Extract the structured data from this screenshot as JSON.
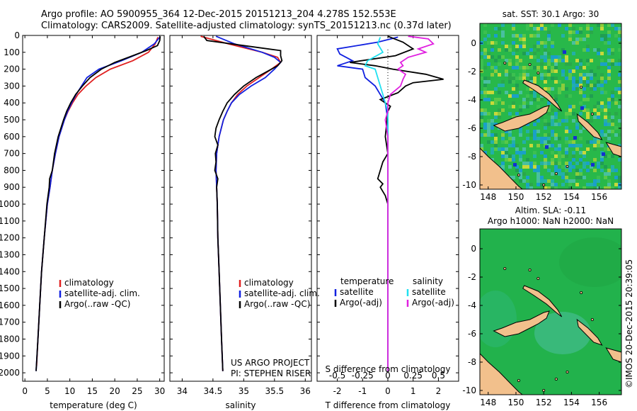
{
  "header": {
    "line1": "Argo profile: AO 5900955_364 12-Dec-2015 20151213_204 4.278S 152.553E",
    "line2": "Climatology: CARS2009. Satellite-adjusted climatology: synTS_20151213.nc (0.37d later)"
  },
  "colors": {
    "climatology": "#e02020",
    "satellite": "#1020e0",
    "argo": "#000000",
    "sal_satellite": "#20e0f0",
    "sal_argo": "#e020e0",
    "ocean": "#2ab34a",
    "land": "#f2c08c"
  },
  "chart_data": [
    {
      "id": "temperature",
      "type": "line",
      "xlabel": "temperature (deg C)",
      "ylabel": "",
      "xlim": [
        -0.5,
        31
      ],
      "ylim": [
        2050,
        0
      ],
      "xticks": [
        0,
        5,
        10,
        15,
        20,
        25,
        30
      ],
      "yticks": [
        0,
        100,
        200,
        300,
        400,
        500,
        600,
        700,
        800,
        900,
        1000,
        1100,
        1200,
        1300,
        1400,
        1500,
        1600,
        1700,
        1800,
        1900,
        2000
      ],
      "legend": [
        "climatology",
        "satellite-adj. clim.",
        "Argo(..raw -QC)"
      ],
      "series": [
        {
          "name": "climatology",
          "color": "#e02020",
          "depth": [
            10,
            50,
            100,
            150,
            200,
            250,
            300,
            350,
            400,
            450,
            500,
            600,
            700,
            800,
            900,
            1000,
            1200,
            1400,
            1600,
            1800,
            1960
          ],
          "values": [
            29.6,
            29.0,
            27.5,
            24.0,
            19.0,
            15.8,
            13.6,
            11.8,
            10.6,
            9.6,
            8.8,
            7.6,
            6.8,
            6.1,
            5.6,
            5.0,
            4.3,
            3.7,
            3.3,
            2.9,
            2.6
          ]
        },
        {
          "name": "satellite",
          "color": "#1020e0",
          "depth": [
            10,
            50,
            100,
            150,
            200,
            250,
            300,
            350,
            400,
            450,
            500,
            600,
            700,
            800,
            900,
            1000,
            1200,
            1400,
            1600,
            1800,
            1990
          ],
          "values": [
            30.0,
            28.8,
            26.0,
            21.5,
            16.5,
            13.8,
            12.6,
            11.4,
            10.4,
            9.5,
            8.8,
            7.6,
            6.8,
            6.1,
            5.6,
            5.0,
            4.3,
            3.7,
            3.3,
            2.9,
            2.5
          ]
        },
        {
          "name": "argo",
          "color": "#000000",
          "depth": [
            5,
            30,
            60,
            90,
            120,
            160,
            200,
            250,
            300,
            350,
            400,
            450,
            500,
            600,
            700,
            800,
            850,
            900,
            1000,
            1200,
            1400,
            1600,
            1800,
            1990
          ],
          "values": [
            30.1,
            30.0,
            29.5,
            27.0,
            24.0,
            20.0,
            17.0,
            14.5,
            12.8,
            11.3,
            10.2,
            9.3,
            8.6,
            7.4,
            6.6,
            6.1,
            5.5,
            5.4,
            4.9,
            4.3,
            3.7,
            3.3,
            2.9,
            2.5
          ]
        }
      ]
    },
    {
      "id": "salinity",
      "type": "line",
      "xlabel": "salinity",
      "ylabel": "",
      "xlim": [
        33.8,
        36.1
      ],
      "ylim": [
        2050,
        0
      ],
      "xticks": [
        34,
        34.5,
        35,
        35.5,
        36
      ],
      "legend": [
        "climatology",
        "satellite-adj. clim.",
        "Argo(..raw -QC)"
      ],
      "annotations": [
        "US ARGO PROJECT",
        "PI: STEPHEN RISER"
      ],
      "series": [
        {
          "name": "climatology",
          "color": "#e02020",
          "depth": [
            5,
            50,
            100,
            130,
            160,
            200,
            250,
            300,
            350,
            400,
            450,
            500,
            600,
            700,
            800,
            900,
            1000,
            1200,
            1400,
            1600,
            1800,
            1990
          ],
          "values": [
            34.3,
            34.75,
            35.3,
            35.55,
            35.6,
            35.45,
            35.25,
            35.05,
            34.9,
            34.8,
            34.73,
            34.67,
            34.6,
            34.56,
            34.55,
            34.56,
            34.57,
            34.58,
            34.6,
            34.62,
            34.64,
            34.66
          ]
        },
        {
          "name": "satellite",
          "color": "#1020e0",
          "depth": [
            5,
            50,
            100,
            130,
            160,
            200,
            250,
            300,
            350,
            400,
            450,
            500,
            600,
            700,
            800,
            900,
            1000,
            1200,
            1400,
            1600,
            1800,
            1990
          ],
          "values": [
            34.55,
            34.85,
            35.3,
            35.5,
            35.6,
            35.5,
            35.35,
            35.12,
            34.93,
            34.8,
            34.73,
            34.67,
            34.6,
            34.56,
            34.55,
            34.56,
            34.57,
            34.58,
            34.6,
            34.62,
            34.64,
            34.66
          ]
        },
        {
          "name": "argo",
          "color": "#000000",
          "depth": [
            5,
            30,
            60,
            90,
            120,
            150,
            180,
            200,
            250,
            300,
            350,
            400,
            450,
            500,
            550,
            600,
            650,
            700,
            750,
            800,
            850,
            900,
            1000,
            1200,
            1400,
            1600,
            1800,
            1990
          ],
          "values": [
            34.35,
            34.4,
            35.0,
            35.6,
            35.6,
            35.62,
            35.55,
            35.45,
            35.2,
            35.0,
            34.85,
            34.73,
            34.66,
            34.6,
            34.55,
            34.53,
            34.58,
            34.54,
            34.55,
            34.53,
            34.58,
            34.56,
            34.57,
            34.58,
            34.6,
            34.62,
            34.64,
            34.66
          ]
        }
      ]
    },
    {
      "id": "difference",
      "type": "line",
      "xlabel": "T difference from climatology",
      "x2label": "S difference from climatology",
      "xlim": [
        -2.8,
        2.8
      ],
      "ylim": [
        2050,
        0
      ],
      "xticks": [
        -2,
        -1,
        0,
        1,
        2
      ],
      "x2ticks": [
        "-0.5",
        "-0.25",
        "0",
        "0.25",
        "0.5"
      ],
      "x2tick_pos": [
        -2,
        -1,
        0,
        1,
        2
      ],
      "legend_titles": [
        "temperature",
        "salinity"
      ],
      "legend": [
        "satellite",
        "Argo(-adj)",
        "satellite",
        "Argo(-adj)"
      ],
      "series": [
        {
          "name": "T satellite",
          "color": "#1020e0",
          "depth": [
            10,
            40,
            80,
            110,
            150,
            180,
            200,
            250,
            300,
            400,
            500,
            700,
            900,
            1200,
            1500,
            1800,
            1990
          ],
          "values": [
            0.4,
            -0.4,
            -2.0,
            -1.9,
            -1.4,
            -2.0,
            -1.0,
            -0.9,
            -0.5,
            -0.1,
            0.0,
            0.0,
            0.0,
            0.0,
            0.0,
            0.0,
            0.0
          ]
        },
        {
          "name": "T argo",
          "color": "#000000",
          "depth": [
            5,
            40,
            80,
            120,
            160,
            180,
            200,
            230,
            260,
            280,
            300,
            340,
            380,
            420,
            450,
            600,
            700,
            750,
            800,
            850,
            880,
            900,
            950,
            1000,
            1200,
            1500,
            1800,
            1990
          ],
          "values": [
            0.0,
            0.6,
            1.0,
            0.3,
            -1.5,
            -0.5,
            0.2,
            1.5,
            2.2,
            1.0,
            0.7,
            0.4,
            -0.3,
            0.1,
            0.0,
            -0.1,
            0.0,
            -0.2,
            -0.3,
            -0.4,
            -0.2,
            -0.3,
            -0.1,
            0.0,
            0.0,
            0.0,
            0.0,
            0.0
          ]
        },
        {
          "name": "S satellite",
          "color": "#20e0f0",
          "depth": [
            10,
            50,
            100,
            150,
            180,
            200,
            250,
            300,
            350,
            400,
            450,
            500,
            700,
            1000,
            1500,
            1990
          ],
          "values": [
            -0.3,
            -0.4,
            -0.2,
            -0.8,
            -0.9,
            -0.5,
            -0.4,
            -0.3,
            -0.2,
            -0.1,
            0.0,
            0.0,
            0.0,
            0.0,
            0.0,
            0.0
          ]
        },
        {
          "name": "S argo",
          "color": "#e020e0",
          "depth": [
            5,
            20,
            50,
            80,
            100,
            130,
            160,
            180,
            200,
            230,
            260,
            300,
            350,
            400,
            450,
            500,
            600,
            700,
            800,
            900,
            1000,
            1200,
            1500,
            1990
          ],
          "values": [
            0.8,
            1.6,
            1.8,
            1.2,
            1.5,
            0.8,
            0.5,
            0.6,
            0.4,
            0.7,
            0.6,
            0.5,
            0.1,
            0.0,
            0.0,
            -0.1,
            0.0,
            0.0,
            0.0,
            0.0,
            0.0,
            0.0,
            0.0,
            0.0
          ]
        }
      ]
    },
    {
      "id": "sst_map",
      "type": "heatmap",
      "title": "sat. SST: 30.1  Argo: 30",
      "xticks": [
        148,
        150,
        152,
        154,
        156
      ],
      "yticks": [
        0,
        -2,
        -4,
        -6,
        -8,
        -10
      ],
      "xlim": [
        147.4,
        157.6
      ],
      "ylim": [
        -10.3,
        1.4
      ]
    },
    {
      "id": "sla_map",
      "type": "heatmap",
      "title1": "Altim. SLA: -0.11",
      "title2": "Argo h1000: NaN h2000: NaN",
      "xticks": [
        148,
        150,
        152,
        154,
        156
      ],
      "yticks": [
        0,
        -2,
        -4,
        -6,
        -8,
        -10
      ],
      "xlim": [
        147.4,
        157.6
      ],
      "ylim": [
        -10.3,
        1.4
      ]
    }
  ],
  "stamp": "©IMOS 20-Dec-2015 20:39:05"
}
